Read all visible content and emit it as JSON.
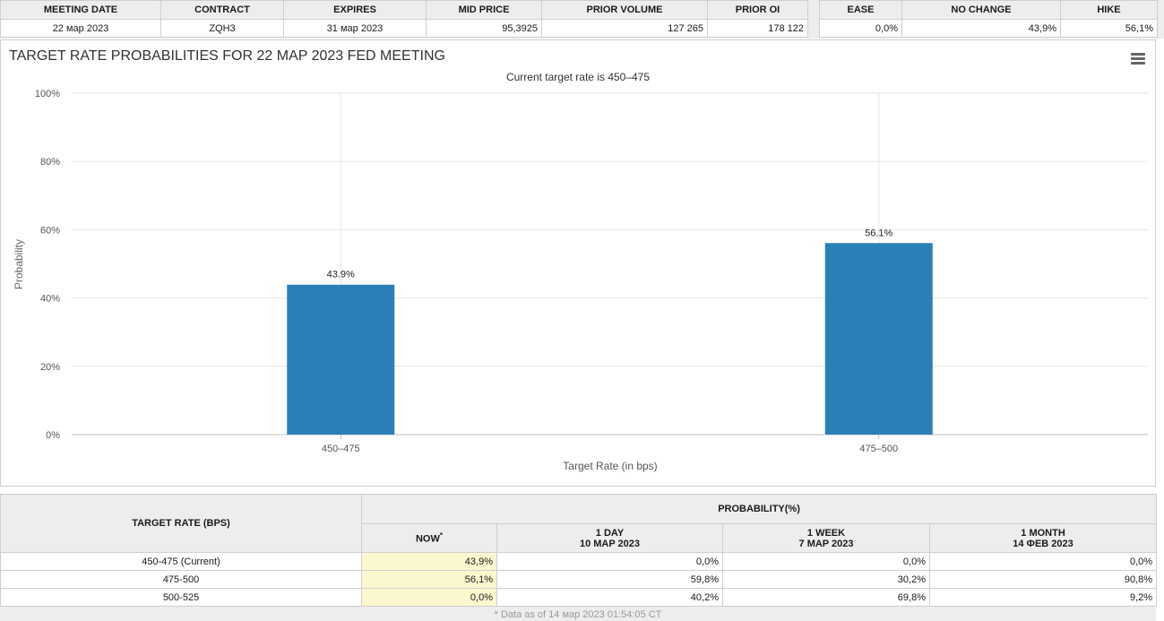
{
  "info_table": {
    "headers": [
      "MEETING DATE",
      "CONTRACT",
      "EXPIRES",
      "MID PRICE",
      "PRIOR VOLUME",
      "PRIOR OI"
    ],
    "row": [
      "22 мар 2023",
      "ZQH3",
      "31 мар 2023",
      "95,3925",
      "127 265",
      "178 122"
    ]
  },
  "outlook_table": {
    "headers": [
      "EASE",
      "NO CHANGE",
      "HIKE"
    ],
    "row": [
      "0,0%",
      "43,9%",
      "56,1%"
    ]
  },
  "chart_data": {
    "type": "bar",
    "title": "TARGET RATE PROBABILITIES FOR 22 MAP 2023 FED MEETING",
    "subtitle": "Current target rate is 450–475",
    "xlabel": "Target Rate (in bps)",
    "ylabel": "Probability",
    "categories": [
      "450–475",
      "475–500"
    ],
    "values": [
      43.9,
      56.1
    ],
    "data_labels": [
      "43.9%",
      "56.1%"
    ],
    "ylim": [
      0,
      100
    ],
    "yticks": [
      0,
      20,
      40,
      60,
      80,
      100
    ],
    "ytick_labels": [
      "0%",
      "20%",
      "40%",
      "60%",
      "80%",
      "100%"
    ],
    "grid": true,
    "bar_color": "#2b7fb8"
  },
  "prob_table": {
    "row_header": "TARGET RATE (BPS)",
    "group_header": "PROBABILITY(%)",
    "columns": [
      {
        "label": "NOW",
        "sub": "",
        "mark": "*"
      },
      {
        "label": "1 DAY",
        "sub": "10 MAP 2023"
      },
      {
        "label": "1 WEEK",
        "sub": "7 MAP 2023"
      },
      {
        "label": "1 MONTH",
        "sub": "14 ФЕВ 2023"
      }
    ],
    "rows": [
      {
        "rate": "450-475 (Current)",
        "values": [
          "43,9%",
          "0,0%",
          "0,0%",
          "0,0%"
        ]
      },
      {
        "rate": "475-500",
        "values": [
          "56,1%",
          "59,8%",
          "30,2%",
          "90,8%"
        ]
      },
      {
        "rate": "500-525",
        "values": [
          "0,0%",
          "40,2%",
          "69,8%",
          "9,2%"
        ]
      }
    ],
    "footnote": "* Data as of 14 мар 2023 01:54:05 CT"
  },
  "colors": {
    "accent": "#2b7fb8",
    "highlight": "#fbf7cf",
    "header_bg": "#ededed"
  },
  "icons": {
    "chart_menu": "hamburger-menu-icon"
  }
}
